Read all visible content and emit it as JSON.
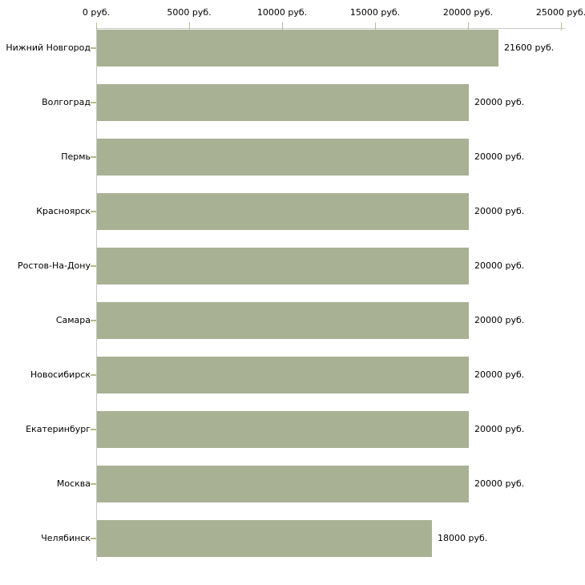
{
  "chart_data": {
    "type": "bar",
    "orientation": "horizontal",
    "categories": [
      "Нижний Новгород",
      "Волгоград",
      "Пермь",
      "Красноярск",
      "Ростов-На-Дону",
      "Самара",
      "Новосибирск",
      "Екатеринбург",
      "Москва",
      "Челябинск"
    ],
    "values": [
      21600,
      20000,
      20000,
      20000,
      20000,
      20000,
      20000,
      20000,
      20000,
      18000
    ],
    "value_labels": [
      "21600 руб.",
      "20000 руб.",
      "20000 руб.",
      "20000 руб.",
      "20000 руб.",
      "20000 руб.",
      "20000 руб.",
      "20000 руб.",
      "20000 руб.",
      "18000 руб."
    ],
    "unit": "руб.",
    "xlim": [
      0,
      25000
    ],
    "x_ticks": [
      0,
      5000,
      10000,
      15000,
      20000,
      25000
    ],
    "x_tick_labels": [
      "0 руб.",
      "5000 руб.",
      "10000 руб.",
      "15000 руб.",
      "20000 руб.",
      "25000 руб."
    ],
    "axis_position": "top",
    "grid": false,
    "legend": "none",
    "colors": {
      "bar": "#a8b194",
      "axis_line": "#c8c8c8",
      "tick_mark": "#b9bd8f",
      "category_tick": "#b6ba85",
      "text": "#000000",
      "background": "#ffffff"
    }
  }
}
